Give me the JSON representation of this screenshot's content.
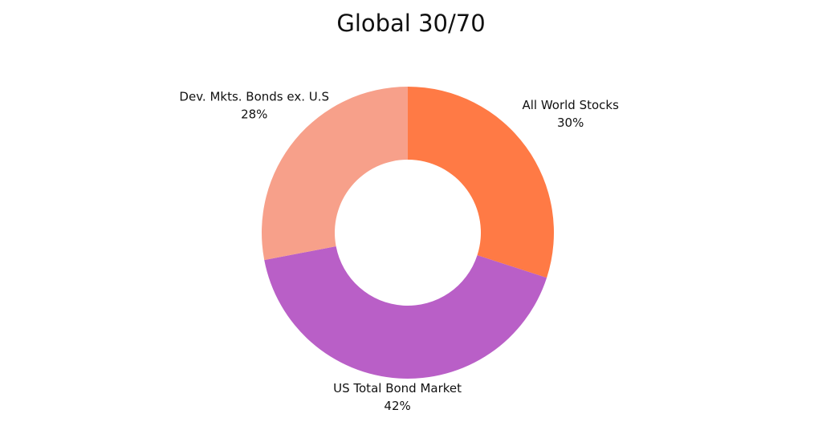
{
  "chart_data": {
    "type": "pie",
    "title": "Global 30/70",
    "categories": [
      "All World Stocks",
      "US Total Bond Market",
      "Dev. Mkts. Bonds ex. U.S"
    ],
    "values": [
      30,
      42,
      28
    ],
    "value_labels": [
      "30%",
      "42%",
      "28%"
    ],
    "colors": [
      "#ff7a45",
      "#b95fc7",
      "#f7a08a"
    ]
  }
}
